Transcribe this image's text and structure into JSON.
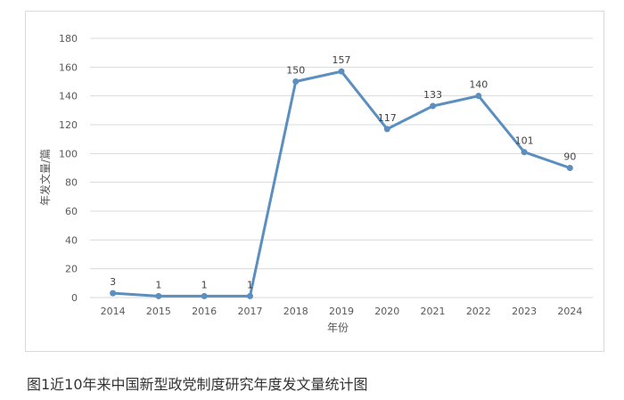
{
  "caption": "图1近10年来中国新型政党制度研究年度发文量统计图",
  "colors": {
    "line": "#5b8fc0",
    "grid": "#d9d9d9",
    "axis_text": "#595959"
  },
  "chart_data": {
    "type": "line",
    "title": "",
    "xlabel": "年份",
    "ylabel": "年发文量/篇",
    "categories": [
      "2014",
      "2015",
      "2016",
      "2017",
      "2018",
      "2019",
      "2020",
      "2021",
      "2022",
      "2023",
      "2024"
    ],
    "series": [
      {
        "values": [
          3,
          1,
          1,
          1,
          150,
          157,
          117,
          133,
          140,
          101,
          90
        ]
      }
    ],
    "ylim": [
      0,
      180
    ],
    "yticks": [
      0,
      20,
      40,
      60,
      80,
      100,
      120,
      140,
      160,
      180
    ],
    "grid": true,
    "legend": "none"
  }
}
